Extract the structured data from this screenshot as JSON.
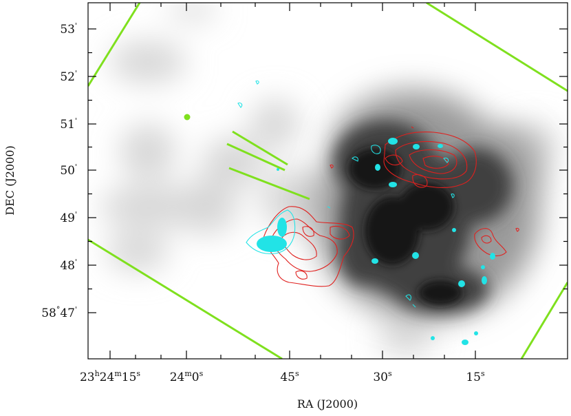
{
  "chart_data": {
    "type": "image",
    "xlabel": "RA (J2000)",
    "ylabel": "DEC (J2000)",
    "x_ticks": [
      {
        "value": "23h24m15s",
        "parts": [
          [
            "23",
            "n"
          ],
          [
            "h",
            "s"
          ],
          [
            "24",
            "n"
          ],
          [
            "m",
            "s"
          ],
          [
            "15",
            "n"
          ],
          [
            "s",
            "s"
          ]
        ]
      },
      {
        "value": "24m0s",
        "parts": [
          [
            "24",
            "n"
          ],
          [
            "m",
            "s"
          ],
          [
            "0",
            "n"
          ],
          [
            "s",
            "s"
          ]
        ]
      },
      {
        "value": "45s",
        "parts": [
          [
            "45",
            "n"
          ],
          [
            "s",
            "s"
          ]
        ]
      },
      {
        "value": "30s",
        "parts": [
          [
            "30",
            "n"
          ],
          [
            "s",
            "s"
          ]
        ]
      },
      {
        "value": "15s",
        "parts": [
          [
            "15",
            "n"
          ],
          [
            "s",
            "s"
          ]
        ]
      }
    ],
    "y_ticks": [
      {
        "value": "53'",
        "parts": [
          [
            "53",
            "n"
          ],
          [
            "'",
            "s"
          ]
        ]
      },
      {
        "value": "52'",
        "parts": [
          [
            "52",
            "n"
          ],
          [
            "'",
            "s"
          ]
        ]
      },
      {
        "value": "51'",
        "parts": [
          [
            "51",
            "n"
          ],
          [
            "'",
            "s"
          ]
        ]
      },
      {
        "value": "50'",
        "parts": [
          [
            "50",
            "n"
          ],
          [
            "'",
            "s"
          ]
        ]
      },
      {
        "value": "49'",
        "parts": [
          [
            "49",
            "n"
          ],
          [
            "'",
            "s"
          ]
        ]
      },
      {
        "value": "48'",
        "parts": [
          [
            "48",
            "n"
          ],
          [
            "'",
            "s"
          ]
        ]
      },
      {
        "value": "58°47'",
        "parts": [
          [
            "58",
            "n"
          ],
          [
            "°",
            "s"
          ],
          [
            "47",
            "n"
          ],
          [
            "'",
            "s"
          ]
        ]
      }
    ],
    "layers": [
      {
        "name": "greyscale-emission",
        "color": "#000000"
      },
      {
        "name": "red-contours",
        "color": "#e0201e"
      },
      {
        "name": "cyan-contours",
        "color": "#22e3e6"
      },
      {
        "name": "green-field-markers",
        "color": "#7fe01e"
      }
    ],
    "grid": false
  }
}
